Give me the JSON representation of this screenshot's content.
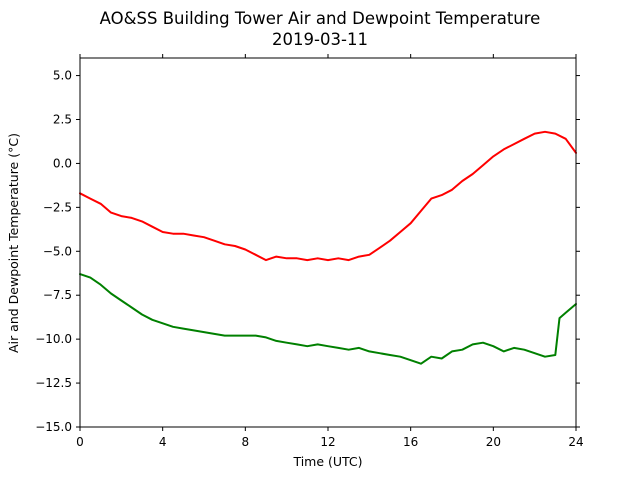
{
  "chart_data": {
    "type": "line",
    "title": "AO&SS Building Tower Air and Dewpoint Temperature",
    "subtitle": "2019-03-11",
    "xlabel": "Time (UTC)",
    "ylabel": "Air and Dewpoint Temperature (°C)",
    "xlim": [
      0,
      24
    ],
    "ylim": [
      -15.0,
      6.0
    ],
    "x_ticks": [
      0,
      4,
      8,
      12,
      16,
      20,
      24
    ],
    "x_tick_labels": [
      "0",
      "4",
      "8",
      "12",
      "16",
      "20",
      "24"
    ],
    "y_ticks": [
      5.0,
      2.5,
      0.0,
      -2.5,
      -5.0,
      -7.5,
      -10.0,
      -12.5,
      -15.0
    ],
    "y_tick_labels": [
      "5.0",
      "2.5",
      "0.0",
      "−2.5",
      "−5.0",
      "−7.5",
      "−10.0",
      "−12.5",
      "−15.0"
    ],
    "grid": false,
    "legend": "none",
    "series": [
      {
        "color": "#ff0000",
        "x": [
          0,
          0.5,
          1,
          1.5,
          2,
          2.5,
          3,
          3.5,
          4,
          4.5,
          5,
          5.5,
          6,
          6.5,
          7,
          7.5,
          8,
          8.5,
          9,
          9.5,
          10,
          10.5,
          11,
          11.5,
          12,
          12.5,
          13,
          13.5,
          14,
          14.5,
          15,
          15.5,
          16,
          16.5,
          17,
          17.5,
          18,
          18.5,
          19,
          19.5,
          20,
          20.5,
          21,
          21.5,
          22,
          22.5,
          23,
          23.5,
          24
        ],
        "y": [
          -1.7,
          -2.0,
          -2.3,
          -2.8,
          -3.0,
          -3.1,
          -3.3,
          -3.6,
          -3.9,
          -4.0,
          -4.0,
          -4.1,
          -4.2,
          -4.4,
          -4.6,
          -4.7,
          -4.9,
          -5.2,
          -5.5,
          -5.3,
          -5.4,
          -5.4,
          -5.5,
          -5.4,
          -5.5,
          -5.4,
          -5.5,
          -5.3,
          -5.2,
          -4.8,
          -4.4,
          -3.9,
          -3.4,
          -2.7,
          -2.0,
          -1.8,
          -1.5,
          -1.0,
          -0.6,
          -0.1,
          0.4,
          0.8,
          1.1,
          1.4,
          1.7,
          1.8,
          1.7,
          1.4,
          0.6
        ]
      },
      {
        "color": "#008000",
        "x": [
          0,
          0.5,
          1,
          1.5,
          2,
          2.5,
          3,
          3.5,
          4,
          4.5,
          5,
          5.5,
          6,
          6.5,
          7,
          7.5,
          8,
          8.5,
          9,
          9.5,
          10,
          10.5,
          11,
          11.5,
          12,
          12.5,
          13,
          13.5,
          14,
          14.5,
          15,
          15.5,
          16,
          16.5,
          17,
          17.5,
          18,
          18.5,
          19,
          19.5,
          20,
          20.5,
          21,
          21.5,
          22,
          22.5,
          23,
          23.2,
          23.5,
          24
        ],
        "y": [
          -6.3,
          -6.5,
          -6.9,
          -7.4,
          -7.8,
          -8.2,
          -8.6,
          -8.9,
          -9.1,
          -9.3,
          -9.4,
          -9.5,
          -9.6,
          -9.7,
          -9.8,
          -9.8,
          -9.8,
          -9.8,
          -9.9,
          -10.1,
          -10.2,
          -10.3,
          -10.4,
          -10.3,
          -10.4,
          -10.5,
          -10.6,
          -10.5,
          -10.7,
          -10.8,
          -10.9,
          -11.0,
          -11.2,
          -11.4,
          -11.0,
          -11.1,
          -10.7,
          -10.6,
          -10.3,
          -10.2,
          -10.4,
          -10.7,
          -10.5,
          -10.6,
          -10.8,
          -11.0,
          -10.9,
          -8.8,
          -8.5,
          -8.0
        ]
      }
    ]
  }
}
